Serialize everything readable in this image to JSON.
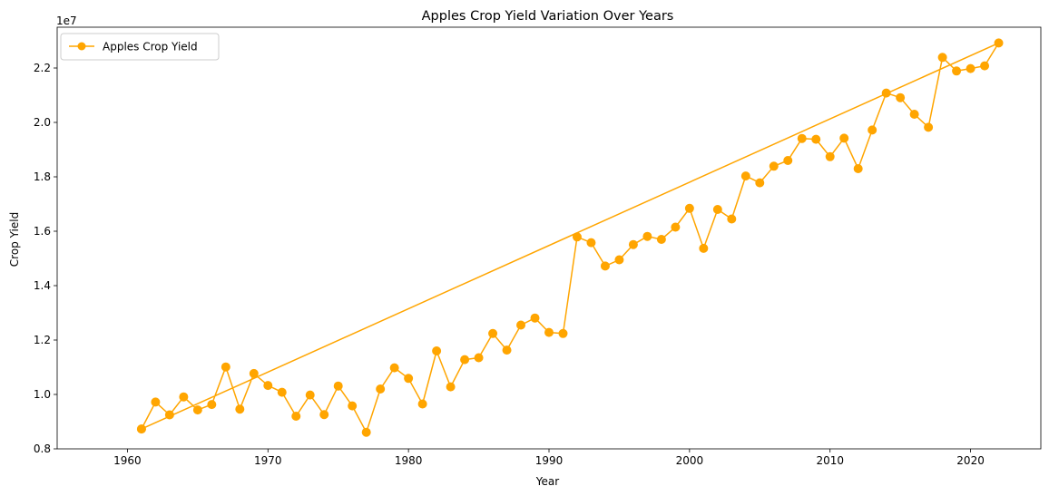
{
  "chart_data": {
    "type": "line",
    "title": "Apples Crop Yield Variation Over Years",
    "xlabel": "Year",
    "ylabel": "Crop Yield",
    "y_offset_text": "1e7",
    "y_scale": 10000000,
    "xlim": [
      1955,
      2025
    ],
    "ylim": [
      8000000,
      23500000
    ],
    "x_ticks": [
      1960,
      1970,
      1980,
      1990,
      2000,
      2010,
      2020
    ],
    "x_tick_labels": [
      "1960",
      "1970",
      "1980",
      "1990",
      "2000",
      "2010",
      "2020"
    ],
    "y_ticks": [
      8000000,
      10000000,
      12000000,
      14000000,
      16000000,
      18000000,
      20000000,
      22000000
    ],
    "y_tick_labels": [
      "0.8",
      "1.0",
      "1.2",
      "1.4",
      "1.6",
      "1.8",
      "2.0",
      "2.2"
    ],
    "grid": false,
    "legend_position": "top-left",
    "series": [
      {
        "name": "Apples Crop Yield",
        "color": "#ffa500",
        "x": [
          1961,
          1962,
          1963,
          1964,
          1965,
          1966,
          1967,
          1968,
          1969,
          1970,
          1971,
          1972,
          1973,
          1974,
          1975,
          1976,
          1977,
          1978,
          1979,
          1980,
          1981,
          1982,
          1983,
          1984,
          1985,
          1986,
          1987,
          1988,
          1989,
          1990,
          1991,
          1992,
          1993,
          1994,
          1995,
          1996,
          1997,
          1998,
          1999,
          2000,
          2001,
          2002,
          2003,
          2004,
          2005,
          2006,
          2007,
          2008,
          2009,
          2010,
          2011,
          2012,
          2013,
          2014,
          2015,
          2016,
          2017,
          2018,
          2019,
          2020,
          2021,
          2022,
          1961
        ],
        "y": [
          8730000,
          9720000,
          9250000,
          9910000,
          9430000,
          9630000,
          11010000,
          9460000,
          10770000,
          10330000,
          10080000,
          9200000,
          9980000,
          9260000,
          10310000,
          9580000,
          8610000,
          10200000,
          10980000,
          10590000,
          9650000,
          11600000,
          10280000,
          11280000,
          11350000,
          12240000,
          11630000,
          12550000,
          12810000,
          12280000,
          12240000,
          15790000,
          15580000,
          14720000,
          14950000,
          15510000,
          15810000,
          15700000,
          16150000,
          16840000,
          15370000,
          16800000,
          16450000,
          18030000,
          17780000,
          18390000,
          18600000,
          19410000,
          19380000,
          18740000,
          19420000,
          18300000,
          19720000,
          21080000,
          20910000,
          20300000,
          19820000,
          22390000,
          21890000,
          21980000,
          22080000,
          22920000,
          8730000
        ]
      }
    ]
  }
}
